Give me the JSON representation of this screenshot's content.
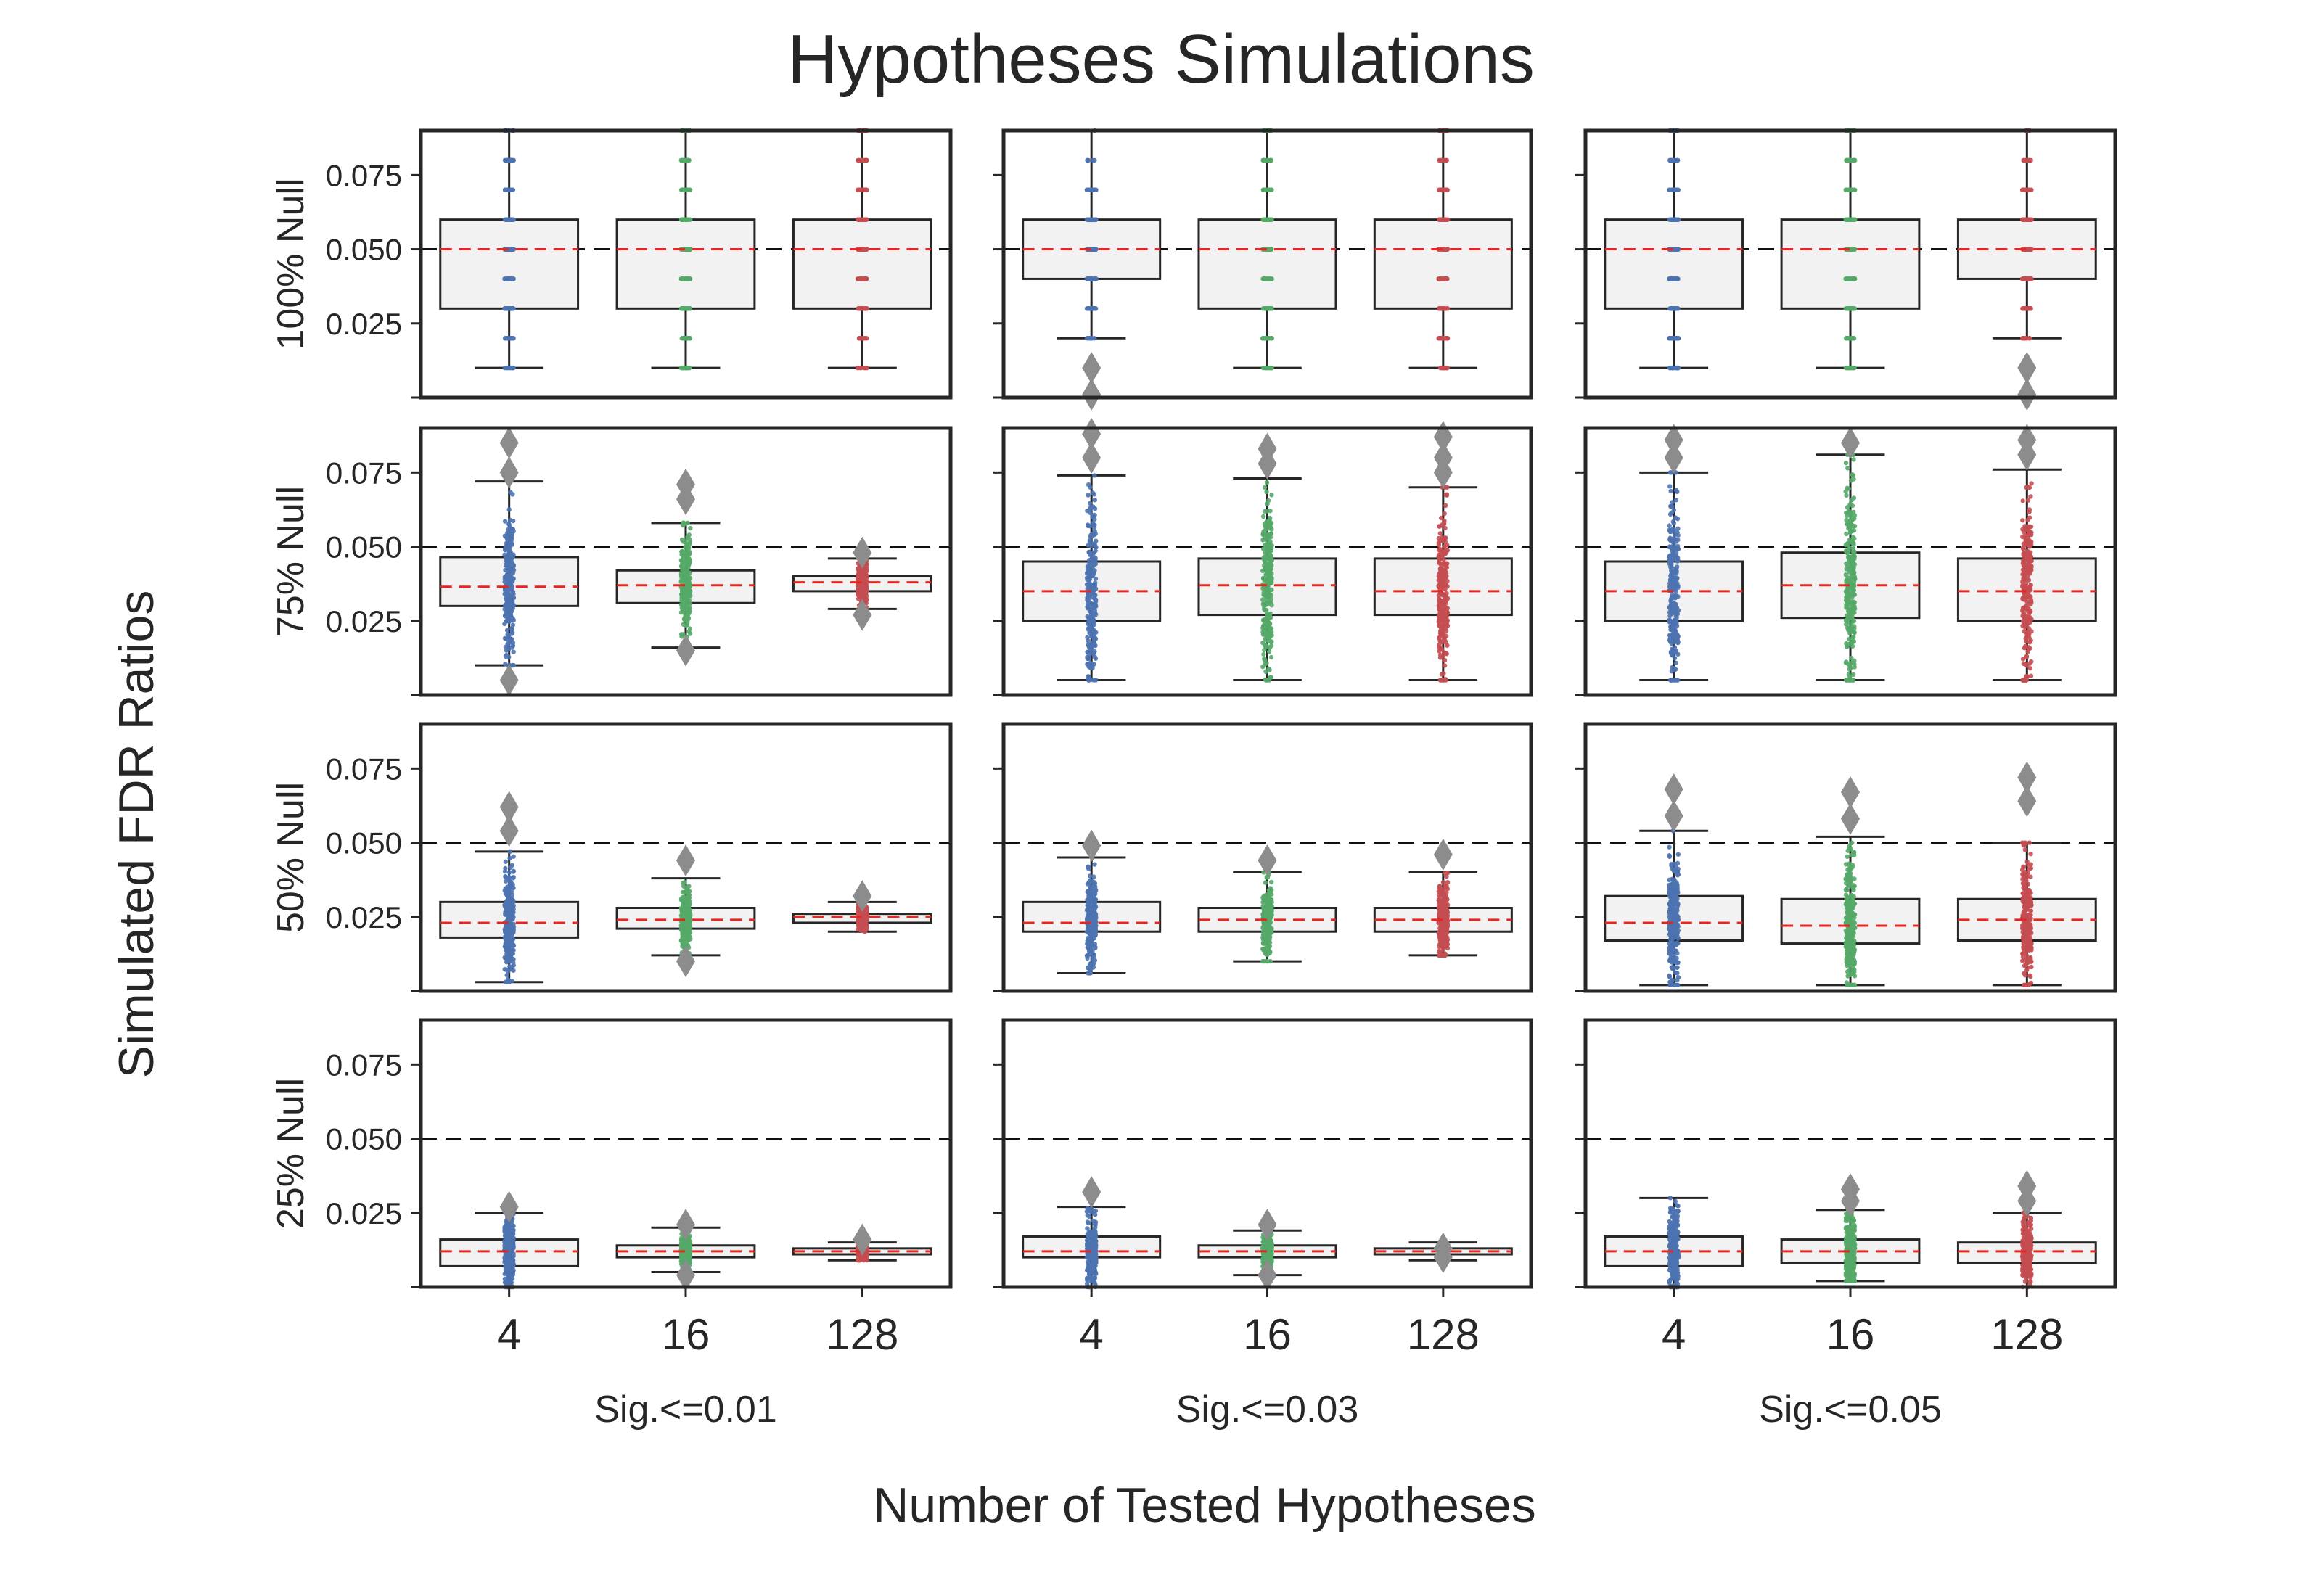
{
  "figure": {
    "title": "Hypotheses Simulations",
    "xlabel": "Number of Tested Hypotheses",
    "ylabel": "Simulated FDR Ratios"
  },
  "colors": {
    "series_4": "#4C72B0",
    "series_16": "#55A868",
    "series_128": "#C44E52",
    "box_fill": "#F2F2F2",
    "box_edge": "#262626",
    "median_line": "#E8251F",
    "reference_line": "#111111",
    "outlier": "#8C8C8C"
  },
  "chart_data": {
    "type": "box",
    "layout": "4 rows x 3 columns, shared axes",
    "rows": [
      "100% Null",
      "75% Null",
      "50% Null",
      "25% Null"
    ],
    "columns": [
      "Sig.<=0.01",
      "Sig.<=0.03",
      "Sig.<=0.05"
    ],
    "categories": [
      "4",
      "16",
      "128"
    ],
    "yticks": [
      "0.025",
      "0.050",
      "0.075"
    ],
    "ylim": [
      0.0,
      0.09
    ],
    "reference_line": 0.05,
    "grid": false,
    "overlay": "jittered strip plot of simulated values",
    "panels": [
      {
        "row": "100% Null",
        "column": "Sig.<=0.01",
        "boxes": [
          {
            "category": "4",
            "q1": 0.03,
            "median": 0.05,
            "q3": 0.06,
            "whisker_low": 0.01,
            "whisker_high": 0.09,
            "spread": 0.035,
            "outliers": []
          },
          {
            "category": "16",
            "q1": 0.03,
            "median": 0.05,
            "q3": 0.06,
            "whisker_low": 0.01,
            "whisker_high": 0.09,
            "spread": 0.035,
            "outliers": []
          },
          {
            "category": "128",
            "q1": 0.03,
            "median": 0.05,
            "q3": 0.06,
            "whisker_low": 0.01,
            "whisker_high": 0.09,
            "spread": 0.035,
            "outliers": []
          }
        ]
      },
      {
        "row": "100% Null",
        "column": "Sig.<=0.03",
        "boxes": [
          {
            "category": "4",
            "q1": 0.04,
            "median": 0.05,
            "q3": 0.06,
            "whisker_low": 0.02,
            "whisker_high": 0.09,
            "spread": 0.035,
            "outliers": [
              0.01,
              0.001
            ]
          },
          {
            "category": "16",
            "q1": 0.03,
            "median": 0.05,
            "q3": 0.06,
            "whisker_low": 0.01,
            "whisker_high": 0.09,
            "spread": 0.035,
            "outliers": []
          },
          {
            "category": "128",
            "q1": 0.03,
            "median": 0.05,
            "q3": 0.06,
            "whisker_low": 0.01,
            "whisker_high": 0.09,
            "spread": 0.035,
            "outliers": []
          }
        ]
      },
      {
        "row": "100% Null",
        "column": "Sig.<=0.05",
        "boxes": [
          {
            "category": "4",
            "q1": 0.03,
            "median": 0.05,
            "q3": 0.06,
            "whisker_low": 0.01,
            "whisker_high": 0.09,
            "spread": 0.035,
            "outliers": []
          },
          {
            "category": "16",
            "q1": 0.03,
            "median": 0.05,
            "q3": 0.06,
            "whisker_low": 0.01,
            "whisker_high": 0.09,
            "spread": 0.035,
            "outliers": []
          },
          {
            "category": "128",
            "q1": 0.04,
            "median": 0.05,
            "q3": 0.06,
            "whisker_low": 0.02,
            "whisker_high": 0.09,
            "spread": 0.035,
            "outliers": [
              0.01,
              0.001
            ]
          }
        ]
      },
      {
        "row": "75% Null",
        "column": "Sig.<=0.01",
        "boxes": [
          {
            "category": "4",
            "q1": 0.03,
            "median": 0.0365,
            "q3": 0.0465,
            "whisker_low": 0.01,
            "whisker_high": 0.072,
            "spread": 0.035,
            "outliers": [
              0.085,
              0.075,
              0.005
            ]
          },
          {
            "category": "16",
            "q1": 0.031,
            "median": 0.037,
            "q3": 0.042,
            "whisker_low": 0.016,
            "whisker_high": 0.058,
            "spread": 0.035,
            "outliers": [
              0.071,
              0.066,
              0.015
            ]
          },
          {
            "category": "128",
            "q1": 0.035,
            "median": 0.038,
            "q3": 0.04,
            "whisker_low": 0.029,
            "whisker_high": 0.046,
            "spread": 0.035,
            "outliers": [
              0.048,
              0.027
            ]
          }
        ]
      },
      {
        "row": "75% Null",
        "column": "Sig.<=0.03",
        "boxes": [
          {
            "category": "4",
            "q1": 0.025,
            "median": 0.035,
            "q3": 0.045,
            "whisker_low": 0.005,
            "whisker_high": 0.074,
            "spread": 0.035,
            "outliers": [
              0.088,
              0.08
            ]
          },
          {
            "category": "16",
            "q1": 0.027,
            "median": 0.037,
            "q3": 0.046,
            "whisker_low": 0.005,
            "whisker_high": 0.073,
            "spread": 0.035,
            "outliers": [
              0.083,
              0.078
            ]
          },
          {
            "category": "128",
            "q1": 0.027,
            "median": 0.035,
            "q3": 0.046,
            "whisker_low": 0.005,
            "whisker_high": 0.07,
            "spread": 0.035,
            "outliers": [
              0.087,
              0.08,
              0.075
            ]
          }
        ]
      },
      {
        "row": "75% Null",
        "column": "Sig.<=0.05",
        "boxes": [
          {
            "category": "4",
            "q1": 0.025,
            "median": 0.035,
            "q3": 0.045,
            "whisker_low": 0.005,
            "whisker_high": 0.075,
            "spread": 0.035,
            "outliers": [
              0.086,
              0.08
            ]
          },
          {
            "category": "16",
            "q1": 0.026,
            "median": 0.037,
            "q3": 0.048,
            "whisker_low": 0.005,
            "whisker_high": 0.081,
            "spread": 0.035,
            "outliers": [
              0.085
            ]
          },
          {
            "category": "128",
            "q1": 0.025,
            "median": 0.035,
            "q3": 0.046,
            "whisker_low": 0.005,
            "whisker_high": 0.076,
            "spread": 0.035,
            "outliers": [
              0.086,
              0.081
            ]
          }
        ]
      },
      {
        "row": "50% Null",
        "column": "Sig.<=0.01",
        "boxes": [
          {
            "category": "4",
            "q1": 0.018,
            "median": 0.023,
            "q3": 0.03,
            "whisker_low": 0.003,
            "whisker_high": 0.047,
            "spread": 0.035,
            "outliers": [
              0.062,
              0.054
            ]
          },
          {
            "category": "16",
            "q1": 0.021,
            "median": 0.024,
            "q3": 0.028,
            "whisker_low": 0.012,
            "whisker_high": 0.038,
            "spread": 0.035,
            "outliers": [
              0.044,
              0.01
            ]
          },
          {
            "category": "128",
            "q1": 0.023,
            "median": 0.025,
            "q3": 0.026,
            "whisker_low": 0.02,
            "whisker_high": 0.03,
            "spread": 0.035,
            "outliers": [
              0.032
            ]
          }
        ]
      },
      {
        "row": "50% Null",
        "column": "Sig.<=0.03",
        "boxes": [
          {
            "category": "4",
            "q1": 0.02,
            "median": 0.023,
            "q3": 0.03,
            "whisker_low": 0.006,
            "whisker_high": 0.045,
            "spread": 0.035,
            "outliers": [
              0.049
            ]
          },
          {
            "category": "16",
            "q1": 0.02,
            "median": 0.024,
            "q3": 0.028,
            "whisker_low": 0.01,
            "whisker_high": 0.04,
            "spread": 0.035,
            "outliers": [
              0.044
            ]
          },
          {
            "category": "128",
            "q1": 0.02,
            "median": 0.024,
            "q3": 0.028,
            "whisker_low": 0.012,
            "whisker_high": 0.04,
            "spread": 0.035,
            "outliers": [
              0.046
            ]
          }
        ]
      },
      {
        "row": "50% Null",
        "column": "Sig.<=0.05",
        "boxes": [
          {
            "category": "4",
            "q1": 0.017,
            "median": 0.023,
            "q3": 0.032,
            "whisker_low": 0.002,
            "whisker_high": 0.054,
            "spread": 0.035,
            "outliers": [
              0.068,
              0.059
            ]
          },
          {
            "category": "16",
            "q1": 0.016,
            "median": 0.022,
            "q3": 0.031,
            "whisker_low": 0.002,
            "whisker_high": 0.052,
            "spread": 0.035,
            "outliers": [
              0.067,
              0.058
            ]
          },
          {
            "category": "128",
            "q1": 0.017,
            "median": 0.024,
            "q3": 0.031,
            "whisker_low": 0.002,
            "whisker_high": 0.05,
            "spread": 0.035,
            "outliers": [
              0.072,
              0.064
            ]
          }
        ]
      },
      {
        "row": "25% Null",
        "column": "Sig.<=0.01",
        "boxes": [
          {
            "category": "4",
            "q1": 0.007,
            "median": 0.012,
            "q3": 0.016,
            "whisker_low": 0.0,
            "whisker_high": 0.025,
            "spread": 0.035,
            "outliers": [
              0.027
            ]
          },
          {
            "category": "16",
            "q1": 0.01,
            "median": 0.012,
            "q3": 0.014,
            "whisker_low": 0.005,
            "whisker_high": 0.02,
            "spread": 0.035,
            "outliers": [
              0.021,
              0.004
            ]
          },
          {
            "category": "128",
            "q1": 0.011,
            "median": 0.012,
            "q3": 0.013,
            "whisker_low": 0.009,
            "whisker_high": 0.015,
            "spread": 0.035,
            "outliers": [
              0.016
            ]
          }
        ]
      },
      {
        "row": "25% Null",
        "column": "Sig.<=0.03",
        "boxes": [
          {
            "category": "4",
            "q1": 0.01,
            "median": 0.012,
            "q3": 0.017,
            "whisker_low": 0.0,
            "whisker_high": 0.027,
            "spread": 0.035,
            "outliers": [
              0.032
            ]
          },
          {
            "category": "16",
            "q1": 0.01,
            "median": 0.012,
            "q3": 0.014,
            "whisker_low": 0.004,
            "whisker_high": 0.019,
            "spread": 0.035,
            "outliers": [
              0.021,
              0.004
            ]
          },
          {
            "category": "128",
            "q1": 0.011,
            "median": 0.012,
            "q3": 0.013,
            "whisker_low": 0.009,
            "whisker_high": 0.015,
            "spread": 0.035,
            "outliers": [
              0.013,
              0.01
            ]
          }
        ]
      },
      {
        "row": "25% Null",
        "column": "Sig.<=0.05",
        "boxes": [
          {
            "category": "4",
            "q1": 0.007,
            "median": 0.012,
            "q3": 0.017,
            "whisker_low": 0.0,
            "whisker_high": 0.03,
            "spread": 0.035,
            "outliers": []
          },
          {
            "category": "16",
            "q1": 0.008,
            "median": 0.012,
            "q3": 0.016,
            "whisker_low": 0.002,
            "whisker_high": 0.026,
            "spread": 0.035,
            "outliers": [
              0.033,
              0.029
            ]
          },
          {
            "category": "128",
            "q1": 0.008,
            "median": 0.012,
            "q3": 0.015,
            "whisker_low": 0.0,
            "whisker_high": 0.025,
            "spread": 0.035,
            "outliers": [
              0.034,
              0.029
            ]
          }
        ]
      }
    ]
  }
}
